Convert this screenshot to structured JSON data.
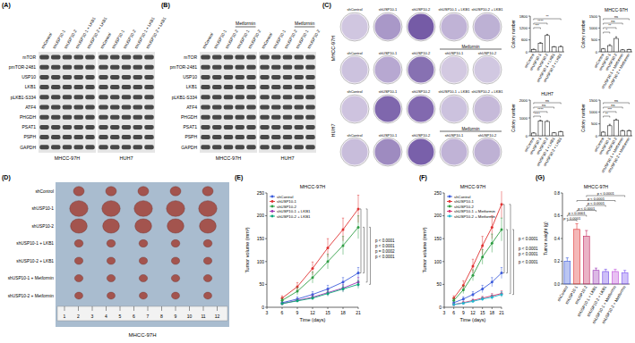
{
  "panel_labels": [
    "(A)",
    "(B)",
    "(C)",
    "(D)",
    "(E)",
    "(F)",
    "(G)"
  ],
  "blots": [
    {
      "lanes": [
        "shControl",
        "shUSP10-1",
        "shUSP10-2",
        "shUSP10-1 + LKB1",
        "shUSP10-2 + LKB1"
      ],
      "cell_lines": [
        "MHCC-97H",
        "HUH7"
      ],
      "proteins": [
        "mTOR",
        "pmTOR-2481",
        "USP10",
        "LKB1",
        "pLKB1-S334",
        "ATF4",
        "PHGDH",
        "PSAT1",
        "PSPH",
        "GAPDH"
      ]
    },
    {
      "lanes": [
        "shControl",
        "shUSP10-1",
        "shUSP10-2",
        "shUSP10-1",
        "shUSP10-2"
      ],
      "treatment": "Metformin",
      "cell_lines": [
        "MHCC-97H",
        "HUH7"
      ],
      "proteins": [
        "mTOR",
        "pmTOR-2481",
        "USP10",
        "LKB1",
        "pLKB1-S334",
        "ATF4",
        "PHGDH",
        "PSAT1",
        "PSPH",
        "GAPDH"
      ]
    }
  ],
  "colony": {
    "cell_lines": [
      "MHCC-97H",
      "HUH7"
    ],
    "rows": [
      {
        "lanes": [
          "shControl",
          "shUSP10-1",
          "shUSP10-2",
          "shUSP10-1 + LKB1",
          "shUSP10-2 + LKB1"
        ]
      },
      {
        "lanes": [
          "shControl",
          "shUSP10-1",
          "shUSP10-2",
          "shUSP10-1",
          "shUSP10-2"
        ],
        "treatment": "Metformin"
      }
    ]
  },
  "tumor_photo": {
    "rows": [
      "shControl",
      "shUSP10-1",
      "shUSP10-2",
      "shUSP10-1 + LKB1",
      "shUSP10-2 + LKB1",
      "shUSP10-1 + Metformin",
      "shUSP10-2 + Metformin"
    ],
    "cell_line": "MHCC-97H",
    "ruler": [
      "1",
      "2",
      "3",
      "4",
      "5",
      "6",
      "7",
      "8",
      "9",
      "10",
      "11",
      "12"
    ]
  },
  "chart_data": [
    {
      "type": "bar",
      "y_label": "Colony number",
      "categories": [
        "shControl",
        "shUSP10-1",
        "shUSP10-2",
        "shUSP10-1 + LKB1",
        "shUSP10-2 + LKB1"
      ],
      "values": [
        120,
        420,
        820,
        240,
        260
      ],
      "errors": [
        20,
        45,
        60,
        30,
        35
      ],
      "color": "#ffffff",
      "ylim": [
        0,
        1800
      ],
      "yticks": [
        0,
        600,
        1200,
        1800
      ],
      "comparisons": [
        {
          "groups": [
            0,
            4
          ],
          "label": "**"
        },
        {
          "groups": [
            0,
            2
          ],
          "label": "****"
        },
        {
          "groups": [
            0,
            1
          ],
          "label": "***"
        }
      ]
    },
    {
      "type": "bar",
      "title": "MHCC-97H",
      "y_label": "Colony number",
      "categories": [
        "shControl",
        "shUSP10-1",
        "shUSP10-2",
        "shUSP10-1 + Metformin",
        "shUSP10-2 + Metformin"
      ],
      "values": [
        120,
        260,
        560,
        80,
        90
      ],
      "errors": [
        20,
        40,
        70,
        15,
        15
      ],
      "color": "#ffffff",
      "ylim": [
        0,
        1500
      ],
      "yticks": [
        0,
        500,
        1000,
        1500
      ],
      "comparisons": [
        {
          "groups": [
            0,
            4
          ],
          "label": "ns"
        },
        {
          "groups": [
            0,
            3
          ],
          "label": "ns"
        },
        {
          "groups": [
            0,
            2
          ],
          "label": "**"
        },
        {
          "groups": [
            0,
            1
          ],
          "label": "*"
        }
      ]
    },
    {
      "type": "bar",
      "title": "HUH7",
      "y_label": "Colony number",
      "categories": [
        "shControl",
        "shUSP10-1",
        "shUSP10-2",
        "shUSP10-1 + LKB1",
        "shUSP10-2 + LKB1"
      ],
      "values": [
        150,
        820,
        800,
        160,
        220
      ],
      "errors": [
        25,
        50,
        45,
        20,
        30
      ],
      "color": "#ffffff",
      "ylim": [
        0,
        2000
      ],
      "yticks": [
        0,
        1000,
        2000
      ],
      "comparisons": [
        {
          "groups": [
            0,
            4
          ],
          "label": "ns"
        },
        {
          "groups": [
            0,
            3
          ],
          "label": "ns"
        },
        {
          "groups": [
            0,
            2
          ],
          "label": "****"
        },
        {
          "groups": [
            0,
            1
          ],
          "label": "****"
        }
      ]
    },
    {
      "type": "bar",
      "y_label": "Colony number",
      "categories": [
        "shControl",
        "shUSP10-1",
        "shUSP10-2",
        "shUSP10-1 + Metformin",
        "shUSP10-2 + Metformin"
      ],
      "values": [
        150,
        420,
        650,
        200,
        210
      ],
      "errors": [
        25,
        60,
        50,
        30,
        25
      ],
      "color": "#ffffff",
      "ylim": [
        0,
        1500
      ],
      "yticks": [
        0,
        500,
        1000,
        1500
      ],
      "comparisons": [
        {
          "groups": [
            0,
            4
          ],
          "label": "ns"
        },
        {
          "groups": [
            0,
            3
          ],
          "label": "ns"
        },
        {
          "groups": [
            0,
            2
          ],
          "label": "***"
        },
        {
          "groups": [
            0,
            1
          ],
          "label": "**"
        }
      ]
    },
    {
      "type": "line",
      "title": "MHCC-97H",
      "x_label": "Time (days)",
      "y_label": "Tumor volume (mm³)",
      "x": [
        6,
        9,
        12,
        15,
        18,
        21
      ],
      "xlim": [
        3,
        21
      ],
      "xticks": [
        3,
        6,
        9,
        12,
        15,
        18,
        21
      ],
      "ylim": [
        0,
        250
      ],
      "yticks": [
        0,
        50,
        100,
        150,
        200,
        250
      ],
      "marker": "circle",
      "legend": "upper left",
      "series": [
        {
          "name": "shControl",
          "color": "#3b5bdb",
          "values": [
            10,
            18,
            28,
            40,
            55,
            75
          ],
          "errors": [
            3,
            5,
            6,
            8,
            10,
            12
          ]
        },
        {
          "name": "shUSP10-1",
          "color": "#e03131",
          "values": [
            20,
            45,
            85,
            130,
            170,
            215
          ],
          "errors": [
            5,
            9,
            14,
            20,
            25,
            30
          ]
        },
        {
          "name": "shUSP10-2",
          "color": "#2f9e44",
          "values": [
            15,
            35,
            65,
            100,
            135,
            175
          ],
          "errors": [
            4,
            8,
            12,
            16,
            20,
            25
          ]
        },
        {
          "name": "shUSP10-1 + LKB1",
          "color": "#9c36b5",
          "values": [
            8,
            15,
            22,
            32,
            42,
            55
          ],
          "errors": [
            2,
            3,
            5,
            6,
            8,
            10
          ]
        },
        {
          "name": "shUSP10-2 + LKB1",
          "color": "#0ca678",
          "values": [
            8,
            14,
            20,
            30,
            40,
            50
          ],
          "errors": [
            2,
            3,
            4,
            6,
            7,
            9
          ]
        }
      ],
      "comparisons": [
        {
          "series": [
            0,
            1
          ],
          "label": "p < 0.0001"
        },
        {
          "series": [
            0,
            2
          ],
          "label": "p = 0.0002"
        },
        {
          "series": [
            1,
            3
          ],
          "label": "p < 0.0001"
        },
        {
          "series": [
            2,
            4
          ],
          "label": "p < 0.0001"
        }
      ]
    },
    {
      "type": "line",
      "title": "MHCC-97H",
      "x_label": "Time (days)",
      "y_label": "Tumor volume (mm³)",
      "x": [
        6,
        9,
        12,
        15,
        18,
        21
      ],
      "xlim": [
        3,
        21
      ],
      "xticks": [
        3,
        6,
        9,
        12,
        15,
        18,
        21
      ],
      "ylim": [
        0,
        250
      ],
      "yticks": [
        0,
        50,
        100,
        150,
        200,
        250
      ],
      "marker": "circle",
      "legend": "upper left",
      "series": [
        {
          "name": "shControl",
          "color": "#3b5bdb",
          "values": [
            10,
            18,
            28,
            40,
            55,
            75
          ],
          "errors": [
            3,
            5,
            6,
            8,
            10,
            12
          ]
        },
        {
          "name": "shUSP10-1",
          "color": "#e03131",
          "values": [
            20,
            48,
            90,
            135,
            175,
            225
          ],
          "errors": [
            5,
            10,
            15,
            20,
            25,
            30
          ]
        },
        {
          "name": "shUSP10-2",
          "color": "#2f9e44",
          "values": [
            15,
            38,
            70,
            110,
            140,
            170
          ],
          "errors": [
            4,
            8,
            12,
            16,
            20,
            25
          ]
        },
        {
          "name": "shUSP10-1 + Metformin",
          "color": "#d6336c",
          "values": [
            6,
            10,
            15,
            20,
            25,
            30
          ],
          "errors": [
            2,
            3,
            3,
            4,
            5,
            6
          ]
        },
        {
          "name": "shUSP10-2 + Metformin",
          "color": "#22b8cf",
          "values": [
            6,
            9,
            13,
            18,
            22,
            28
          ],
          "errors": [
            2,
            2,
            3,
            4,
            5,
            6
          ]
        }
      ],
      "comparisons": [
        {
          "series": [
            0,
            1
          ],
          "label": "p < 0.0001"
        },
        {
          "series": [
            0,
            2
          ],
          "label": "p < 0.0001"
        },
        {
          "series": [
            1,
            3
          ],
          "label": "p < 0.0001"
        },
        {
          "series": [
            2,
            4
          ],
          "label": "p < 0.0001"
        }
      ]
    },
    {
      "type": "bar",
      "title": "MHCC-97H",
      "y_label": "Tumor weight (g)",
      "categories": [
        "shControl",
        "shUSP10-1",
        "shUSP10-2",
        "shUSP10-1 + LKB1",
        "shUSP10-2 + LKB1",
        "shUSP10-1 + Metformin",
        "shUSP10-2 + Metformin"
      ],
      "values": [
        0.2,
        0.48,
        0.42,
        0.12,
        0.11,
        0.11,
        0.1
      ],
      "errors": [
        0.03,
        0.05,
        0.05,
        0.02,
        0.02,
        0.02,
        0.02
      ],
      "colors": [
        "#3b5bdb",
        "#e03131",
        "#c2255c",
        "#9c36b5",
        "#7048e8",
        "#be4bdb",
        "#7950f2"
      ],
      "ylim": [
        0,
        0.8
      ],
      "yticks": [
        {
          "value": 0,
          "label": "0.0"
        },
        0.2,
        0.4,
        0.6,
        0.8
      ],
      "comparisons": [
        {
          "groups": [
            2,
            6
          ],
          "label": "p < 0.0001"
        },
        {
          "groups": [
            1,
            5
          ],
          "label": "p < 0.0001"
        },
        {
          "groups": [
            2,
            4
          ],
          "label": "p < 0.0001"
        },
        {
          "groups": [
            1,
            3
          ],
          "label": "p < 0.0001"
        },
        {
          "groups": [
            0,
            2
          ],
          "label": "p < 0.0001"
        },
        {
          "groups": [
            0,
            1
          ],
          "label": "p < 0.0001"
        }
      ]
    }
  ]
}
